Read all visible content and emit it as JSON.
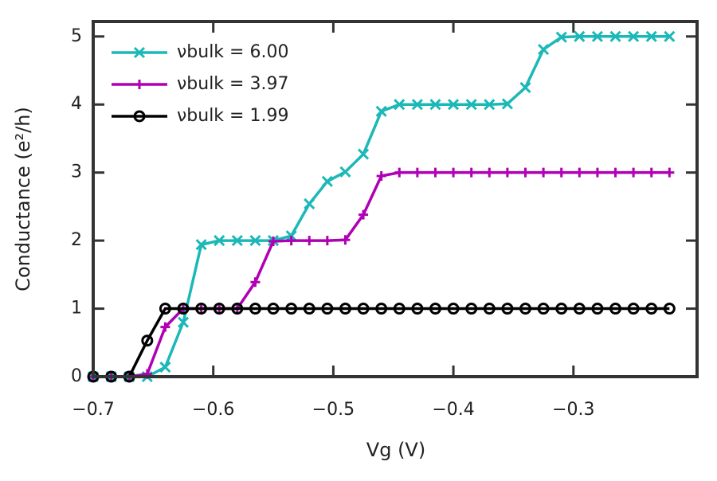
{
  "chart_data": {
    "type": "line",
    "x_label": "Vg (V)",
    "y_label": "Conductance (e²/h)",
    "x": [
      -0.7,
      -0.685,
      -0.67,
      -0.655,
      -0.64,
      -0.625,
      -0.61,
      -0.595,
      -0.58,
      -0.565,
      -0.55,
      -0.535,
      -0.52,
      -0.505,
      -0.49,
      -0.475,
      -0.46,
      -0.445,
      -0.43,
      -0.415,
      -0.4,
      -0.385,
      -0.37,
      -0.355,
      -0.34,
      -0.325,
      -0.31,
      -0.295,
      -0.28,
      -0.265,
      -0.25,
      -0.235,
      -0.22
    ],
    "series": [
      {
        "name": "νbulk = 6.00",
        "color": "#1cb8b8",
        "marker": "x",
        "values": [
          0,
          0,
          0,
          0,
          0.14,
          0.8,
          1.94,
          2,
          2,
          2,
          2,
          2.07,
          2.54,
          2.87,
          3.01,
          3.27,
          3.9,
          4,
          4,
          4,
          4,
          4,
          4,
          4.01,
          4.25,
          4.81,
          4.99,
          5,
          5,
          5,
          5,
          5,
          5
        ]
      },
      {
        "name": "νbulk = 3.97",
        "color": "#b000b4",
        "marker": "+",
        "values": [
          0,
          0,
          0,
          0.04,
          0.73,
          1,
          1,
          1,
          1,
          1.39,
          1.99,
          2,
          2,
          2,
          2.01,
          2.38,
          2.95,
          3,
          3,
          3,
          3,
          3,
          3,
          3,
          3,
          3,
          3,
          3,
          3,
          3,
          3,
          3,
          3
        ]
      },
      {
        "name": "νbulk = 1.99",
        "color": "#000000",
        "marker": "o",
        "values": [
          0,
          0,
          0,
          0.53,
          1,
          1,
          1,
          1,
          1,
          1,
          1,
          1,
          1,
          1,
          1,
          1,
          1,
          1,
          1,
          1,
          1,
          1,
          1,
          1,
          1,
          1,
          1,
          1,
          1,
          1,
          1,
          1,
          1
        ]
      }
    ],
    "xlim": [
      -0.7,
      -0.197
    ],
    "ylim": [
      0,
      5.22
    ],
    "xticks": [
      {
        "value": -0.7,
        "label": "−0.7"
      },
      {
        "value": -0.6,
        "label": "−0.6"
      },
      {
        "value": -0.5,
        "label": "−0.5"
      },
      {
        "value": -0.4,
        "label": "−0.4"
      },
      {
        "value": -0.3,
        "label": "−0.3"
      }
    ],
    "yticks": [
      0,
      1,
      2,
      3,
      4,
      5
    ],
    "legend": "upper left",
    "grid": false
  }
}
